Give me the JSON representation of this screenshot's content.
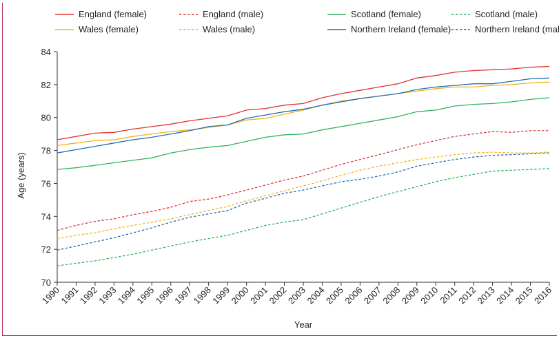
{
  "chart_data": {
    "type": "line",
    "xlabel": "Year",
    "ylabel": "Age (years)",
    "ylim": [
      70,
      84
    ],
    "yticks": [
      70,
      72,
      74,
      76,
      78,
      80,
      82,
      84
    ],
    "xlim": [
      1990,
      2016
    ],
    "x": [
      1990,
      1991,
      1992,
      1993,
      1994,
      1995,
      1996,
      1997,
      1998,
      1999,
      2000,
      2001,
      2002,
      2003,
      2004,
      2005,
      2006,
      2007,
      2008,
      2009,
      2010,
      2011,
      2012,
      2013,
      2014,
      2015,
      2016
    ],
    "legend_position": "top",
    "grid": false,
    "series": [
      {
        "name": "England (female)",
        "color": "#e03030",
        "dash": false,
        "values": [
          78.65,
          78.85,
          79.05,
          79.1,
          79.3,
          79.45,
          79.6,
          79.8,
          79.95,
          80.1,
          80.45,
          80.55,
          80.75,
          80.85,
          81.2,
          81.45,
          81.65,
          81.85,
          82.05,
          82.4,
          82.55,
          82.75,
          82.85,
          82.9,
          82.95,
          83.05,
          83.1
        ]
      },
      {
        "name": "England (male)",
        "color": "#e03030",
        "dash": true,
        "values": [
          73.15,
          73.45,
          73.7,
          73.85,
          74.1,
          74.3,
          74.55,
          74.9,
          75.05,
          75.3,
          75.6,
          75.9,
          76.2,
          76.45,
          76.8,
          77.15,
          77.45,
          77.75,
          78.05,
          78.35,
          78.6,
          78.85,
          79.0,
          79.15,
          79.1,
          79.2,
          79.2
        ]
      },
      {
        "name": "Scotland (female)",
        "color": "#2eb35e",
        "dash": false,
        "values": [
          76.85,
          76.95,
          77.1,
          77.25,
          77.4,
          77.55,
          77.85,
          78.05,
          78.2,
          78.3,
          78.55,
          78.8,
          78.95,
          79.0,
          79.25,
          79.45,
          79.65,
          79.85,
          80.05,
          80.35,
          80.45,
          80.7,
          80.8,
          80.85,
          80.95,
          81.1,
          81.2
        ]
      },
      {
        "name": "Scotland (male)",
        "color": "#2eb35e",
        "dash": true,
        "values": [
          71.0,
          71.15,
          71.3,
          71.5,
          71.7,
          71.95,
          72.2,
          72.45,
          72.65,
          72.85,
          73.15,
          73.45,
          73.65,
          73.8,
          74.15,
          74.5,
          74.85,
          75.2,
          75.5,
          75.8,
          76.1,
          76.35,
          76.55,
          76.75,
          76.8,
          76.85,
          76.9
        ]
      },
      {
        "name": "Wales (female)",
        "color": "#f2b21a",
        "dash": false,
        "values": [
          78.3,
          78.45,
          78.6,
          78.65,
          78.85,
          79.0,
          79.15,
          79.25,
          79.4,
          79.55,
          79.85,
          79.95,
          80.2,
          80.45,
          80.75,
          81.0,
          81.15,
          81.3,
          81.45,
          81.6,
          81.75,
          81.85,
          81.85,
          81.95,
          82.0,
          82.1,
          82.15
        ]
      },
      {
        "name": "Wales (male)",
        "color": "#f2b21a",
        "dash": true,
        "values": [
          72.65,
          72.85,
          73.0,
          73.25,
          73.45,
          73.65,
          73.85,
          74.1,
          74.35,
          74.6,
          74.95,
          75.25,
          75.55,
          75.85,
          76.15,
          76.5,
          76.8,
          77.05,
          77.25,
          77.45,
          77.6,
          77.75,
          77.85,
          77.9,
          77.85,
          77.85,
          77.9
        ]
      },
      {
        "name": "Northern Ireland (female)",
        "color": "#1f6fb4",
        "dash": false,
        "values": [
          77.85,
          78.05,
          78.25,
          78.45,
          78.65,
          78.8,
          79.0,
          79.2,
          79.45,
          79.55,
          79.95,
          80.15,
          80.35,
          80.5,
          80.75,
          80.95,
          81.15,
          81.3,
          81.45,
          81.7,
          81.85,
          81.95,
          82.05,
          82.05,
          82.2,
          82.35,
          82.4
        ]
      },
      {
        "name": "Northern Ireland (male)",
        "color": "#1f6fb4",
        "dash": true,
        "values": [
          71.95,
          72.2,
          72.45,
          72.7,
          73.0,
          73.3,
          73.65,
          73.95,
          74.15,
          74.35,
          74.8,
          75.1,
          75.4,
          75.6,
          75.85,
          76.1,
          76.25,
          76.45,
          76.7,
          77.05,
          77.25,
          77.45,
          77.6,
          77.7,
          77.75,
          77.8,
          77.85
        ]
      }
    ]
  }
}
